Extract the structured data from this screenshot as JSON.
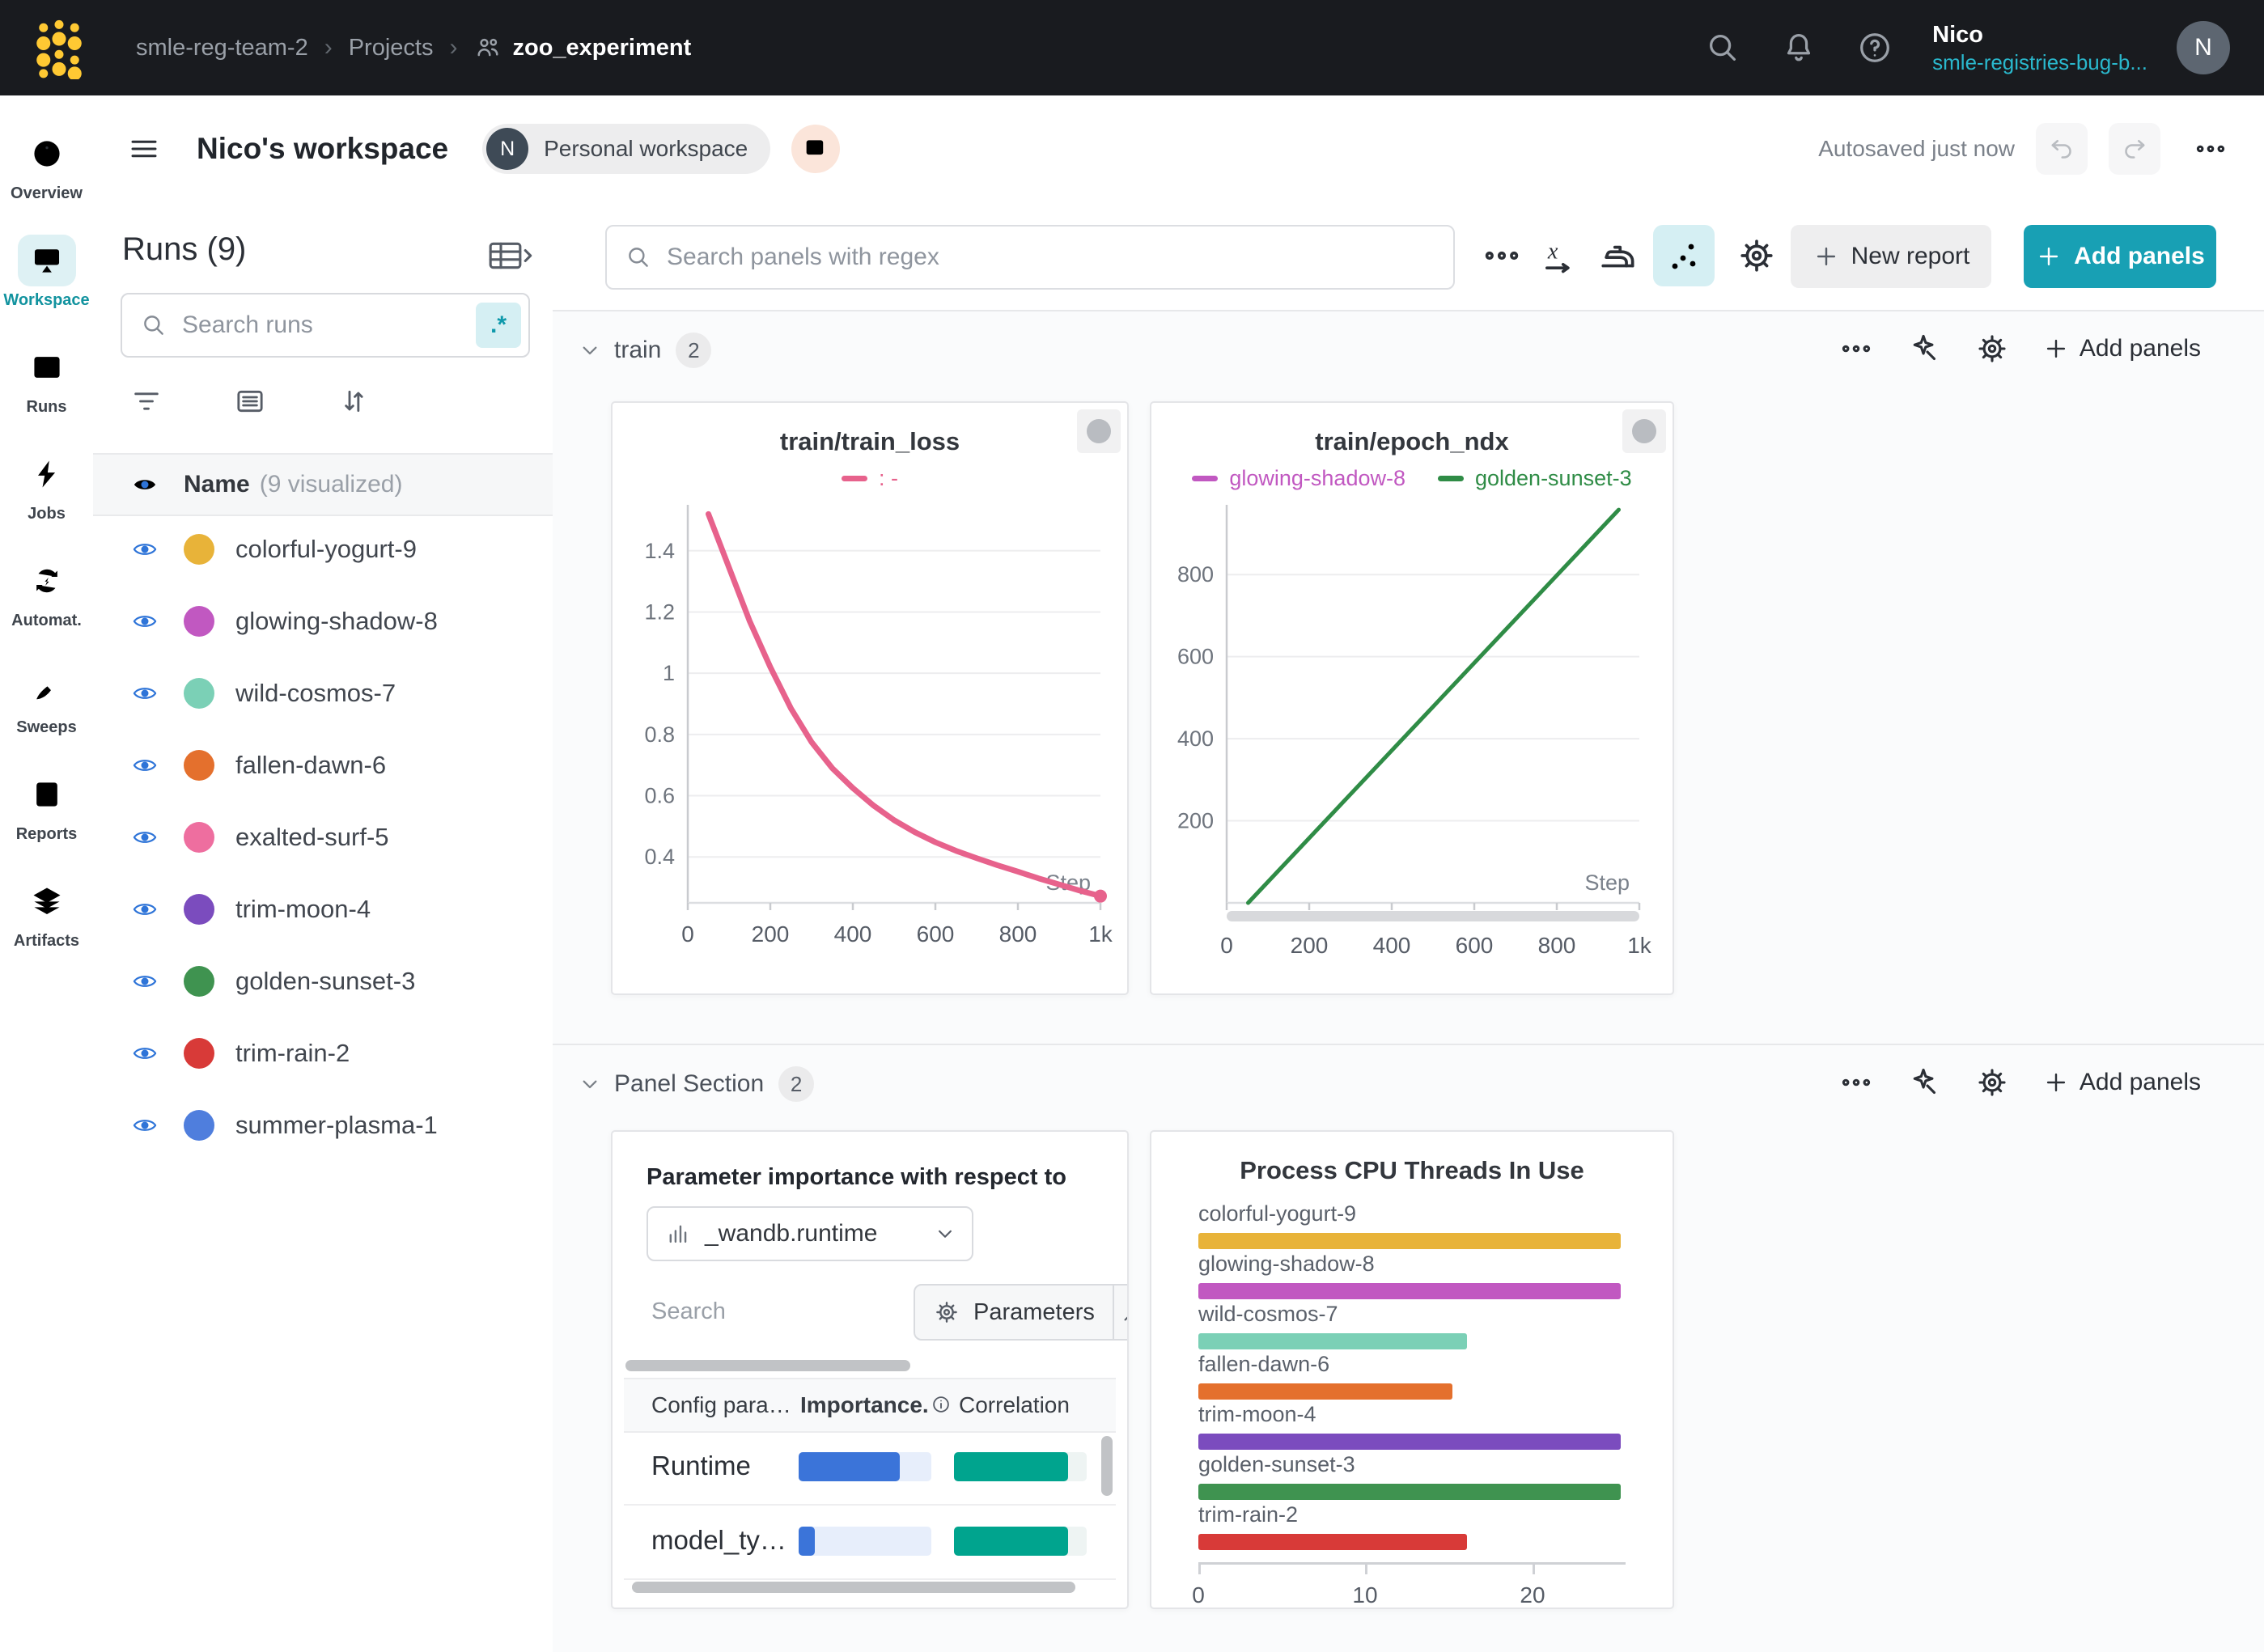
{
  "topbar": {
    "breadcrumb": {
      "team": "smle-reg-team-2",
      "section": "Projects",
      "project": "zoo_experiment",
      "separator": "›"
    },
    "user_name": "Nico",
    "user_org": "smle-registries-bug-b...",
    "avatar_initial": "N"
  },
  "sidebar": {
    "items": [
      {
        "label": "Overview",
        "icon": "info-icon",
        "active": false
      },
      {
        "label": "Workspace",
        "icon": "workspace-icon",
        "active": true
      },
      {
        "label": "Runs",
        "icon": "runs-icon",
        "active": false
      },
      {
        "label": "Jobs",
        "icon": "jobs-icon",
        "active": false
      },
      {
        "label": "Automat.",
        "icon": "automations-icon",
        "active": false
      },
      {
        "label": "Sweeps",
        "icon": "sweeps-icon",
        "active": false
      },
      {
        "label": "Reports",
        "icon": "reports-icon",
        "active": false
      },
      {
        "label": "Artifacts",
        "icon": "artifacts-icon",
        "active": false
      }
    ]
  },
  "workspace_header": {
    "title": "Nico's workspace",
    "badge_initial": "N",
    "badge_label": "Personal workspace",
    "autosave_status": "Autosaved just now"
  },
  "runs_panel": {
    "title": "Runs (9)",
    "search_placeholder": "Search runs",
    "regex_badge": ".*",
    "header_name": "Name",
    "header_note": "(9 visualized)",
    "runs": [
      {
        "name": "colorful-yogurt-9",
        "color": "#e8b339"
      },
      {
        "name": "glowing-shadow-8",
        "color": "#c158c1"
      },
      {
        "name": "wild-cosmos-7",
        "color": "#7bd0b6"
      },
      {
        "name": "fallen-dawn-6",
        "color": "#e4702d"
      },
      {
        "name": "exalted-surf-5",
        "color": "#ee6e9f"
      },
      {
        "name": "trim-moon-4",
        "color": "#7b4cbe"
      },
      {
        "name": "golden-sunset-3",
        "color": "#3f9350"
      },
      {
        "name": "trim-rain-2",
        "color": "#d83a38"
      },
      {
        "name": "summer-plasma-1",
        "color": "#4f7edd"
      }
    ]
  },
  "toolbar": {
    "search_placeholder": "Search panels with regex",
    "new_report_label": "New report",
    "add_panels_label": "Add panels"
  },
  "sections": [
    {
      "title": "train",
      "count": "2",
      "add_panels_label": "Add panels"
    },
    {
      "title": "Panel Section",
      "count": "2",
      "add_panels_label": "Add panels"
    }
  ],
  "param_importance": {
    "title": "Parameter importance with respect to",
    "metric": "_wandb.runtime",
    "search_placeholder": "Search",
    "parameters_label": "Parameters",
    "columns": {
      "config": "Config para…",
      "importance": "Importance.",
      "correlation": "Correlation"
    },
    "rows": [
      {
        "name": "Runtime",
        "importance": 0.76,
        "correlation": 0.86
      },
      {
        "name": "model_ty…",
        "importance": 0.12,
        "correlation": 0.86
      }
    ],
    "importance_color": "#3b74d9",
    "importance_track": "#e7eefb",
    "correlation_color": "#00a48e",
    "correlation_track": "#eef4f3"
  },
  "chart_data": [
    {
      "type": "line",
      "title": "train/train_loss",
      "legend": [
        {
          "label": ": -",
          "color": "#e7628c"
        }
      ],
      "xlabel": "Step",
      "xlim": [
        0,
        1000
      ],
      "ylim": [
        0.25,
        1.55
      ],
      "xticks": [
        {
          "v": 0,
          "label": "0"
        },
        {
          "v": 200,
          "label": "200"
        },
        {
          "v": 400,
          "label": "400"
        },
        {
          "v": 600,
          "label": "600"
        },
        {
          "v": 800,
          "label": "800"
        },
        {
          "v": 1000,
          "label": "1k"
        }
      ],
      "yticks": [
        {
          "v": 0.4,
          "label": "0.4"
        },
        {
          "v": 0.6,
          "label": "0.6"
        },
        {
          "v": 0.8,
          "label": "0.8"
        },
        {
          "v": 1,
          "label": "1"
        },
        {
          "v": 1.2,
          "label": "1.2"
        },
        {
          "v": 1.4,
          "label": "1.4"
        }
      ],
      "grid": true,
      "legend_position": "top",
      "scrollbar": false,
      "series": [
        {
          "name": ": -",
          "color": "#e7628c",
          "width": 7,
          "end_dot": true,
          "points": [
            [
              50,
              1.52
            ],
            [
              100,
              1.345
            ],
            [
              150,
              1.17
            ],
            [
              200,
              1.02
            ],
            [
              250,
              0.885
            ],
            [
              300,
              0.775
            ],
            [
              350,
              0.69
            ],
            [
              400,
              0.625
            ],
            [
              450,
              0.568
            ],
            [
              500,
              0.52
            ],
            [
              550,
              0.481
            ],
            [
              600,
              0.448
            ],
            [
              650,
              0.42
            ],
            [
              700,
              0.396
            ],
            [
              750,
              0.373
            ],
            [
              800,
              0.352
            ],
            [
              850,
              0.33
            ],
            [
              900,
              0.31
            ],
            [
              950,
              0.29
            ],
            [
              1000,
              0.272
            ]
          ]
        }
      ]
    },
    {
      "type": "line",
      "title": "train/epoch_ndx",
      "legend": [
        {
          "label": "glowing-shadow-8",
          "color": "#c158c1"
        },
        {
          "label": "golden-sunset-3",
          "color": "#2f8c46"
        }
      ],
      "xlabel": "Step",
      "xlim": [
        0,
        1000
      ],
      "ylim": [
        0,
        970
      ],
      "xticks": [
        {
          "v": 0,
          "label": "0"
        },
        {
          "v": 200,
          "label": "200"
        },
        {
          "v": 400,
          "label": "400"
        },
        {
          "v": 600,
          "label": "600"
        },
        {
          "v": 800,
          "label": "800"
        },
        {
          "v": 1000,
          "label": "1k"
        }
      ],
      "yticks": [
        {
          "v": 200,
          "label": "200"
        },
        {
          "v": 400,
          "label": "400"
        },
        {
          "v": 600,
          "label": "600"
        },
        {
          "v": 800,
          "label": "800"
        }
      ],
      "grid": true,
      "legend_position": "top",
      "scrollbar": true,
      "series": [
        {
          "name": "golden-sunset-3",
          "color": "#2f8c46",
          "width": 5,
          "end_dot": false,
          "points": [
            [
              52,
              0
            ],
            [
              950,
              958
            ]
          ]
        }
      ]
    },
    {
      "type": "bar",
      "title": "Process CPU Threads In Use",
      "categories": [
        "colorful-yogurt-9",
        "glowing-shadow-8",
        "wild-cosmos-7",
        "fallen-dawn-6",
        "trim-moon-4",
        "golden-sunset-3",
        "trim-rain-2"
      ],
      "values": [
        25.3,
        25.3,
        16.1,
        15.2,
        25.3,
        25.3,
        16.1
      ],
      "colors": [
        "#e8b339",
        "#c158c1",
        "#7bd0b6",
        "#e4702d",
        "#7b4cbe",
        "#3f9350",
        "#d83a38"
      ],
      "xlim": [
        0,
        25.6
      ],
      "xticks": [
        {
          "v": 0,
          "label": "0"
        },
        {
          "v": 10,
          "label": "10"
        },
        {
          "v": 20,
          "label": "20"
        }
      ],
      "xlabel": "",
      "ylabel": ""
    }
  ]
}
